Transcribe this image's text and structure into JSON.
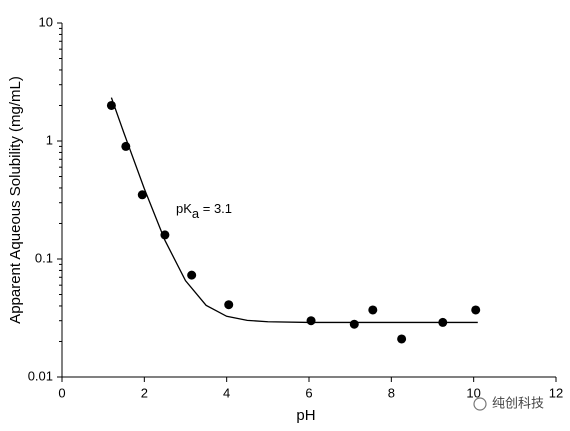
{
  "chart_data": {
    "type": "scatter",
    "x_label": "pH",
    "y_label": "Apparent Aqueous Solubility (mg/mL)",
    "annotation": {
      "main": "pK",
      "sub": "a",
      "rest": " = 3.1"
    },
    "watermark": "纯创科技",
    "log_y": true,
    "xlim": [
      0,
      12
    ],
    "xticks": [
      0,
      2,
      4,
      6,
      8,
      10,
      12
    ],
    "ylim": [
      0.01,
      10
    ],
    "yticks": [
      0.01,
      0.1,
      1,
      10
    ],
    "series": [
      {
        "kind": "points",
        "color": "#000000",
        "x": [
          1.2,
          1.55,
          1.95,
          2.5,
          3.15,
          4.05,
          6.05,
          7.1,
          7.55,
          8.25,
          9.25,
          10.05
        ],
        "values": [
          2.0,
          0.9,
          0.35,
          0.16,
          0.073,
          0.041,
          0.03,
          0.028,
          0.037,
          0.021,
          0.029,
          0.037
        ]
      },
      {
        "kind": "line",
        "color": "#000000",
        "x": [
          1.2,
          1.5,
          2,
          2.5,
          3,
          3.5,
          4,
          4.5,
          5,
          6,
          7,
          8,
          9,
          10.1
        ],
        "values": [
          2.33,
          1.18,
          0.394,
          0.144,
          0.0655,
          0.0405,
          0.0327,
          0.0302,
          0.0294,
          0.029,
          0.029,
          0.029,
          0.029,
          0.029
        ]
      }
    ]
  }
}
